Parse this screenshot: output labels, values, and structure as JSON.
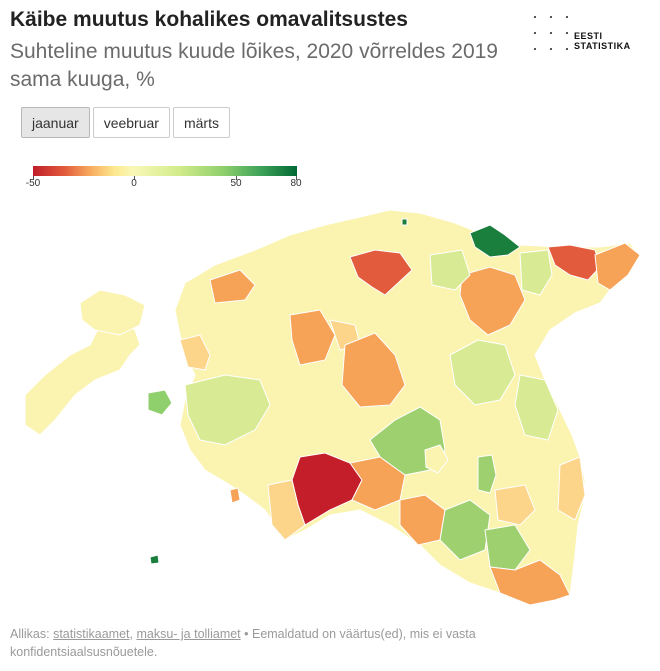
{
  "header": {
    "title": "Käibe muutus kohalikes omavalitsustes",
    "subtitle": "Suhteline muutus kuude lõikes, 2020 võrreldes 2019 sama kuuga, %"
  },
  "logo": {
    "line1": "EESTI",
    "line2": "STATISTIKA"
  },
  "tabs": [
    {
      "label": "jaanuar",
      "active": true
    },
    {
      "label": "veebruar",
      "active": false
    },
    {
      "label": "märts",
      "active": false
    }
  ],
  "legend": {
    "min": -50,
    "max": 80,
    "ticks": [
      "-50",
      "0",
      "50",
      "80"
    ],
    "colors": [
      "#bf1d2a",
      "#f8ad60",
      "#f9f8b8",
      "#8fcf6c",
      "#016934"
    ]
  },
  "map": {
    "region_name": "Eesti kohalikud omavalitsused",
    "level_colors": {
      "strong_decline": "#c41e2b",
      "decline": "#e25b3c",
      "mild_decline": "#f6a257",
      "slight_decline": "#fcd58a",
      "neutral": "#fbf3b0",
      "slight_growth": "#d8eb94",
      "growth": "#9fd06f",
      "strong_growth": "#1a7e3c"
    }
  },
  "footer": {
    "prefix": "Allikas: ",
    "link1": "statistikaamet",
    "sep": ", ",
    "link2": "maksu- ja tolliamet",
    "suffix": " • Eemaldatud on väärtus(ed), mis ei vasta konfidentsiaalsusnõuetele."
  }
}
